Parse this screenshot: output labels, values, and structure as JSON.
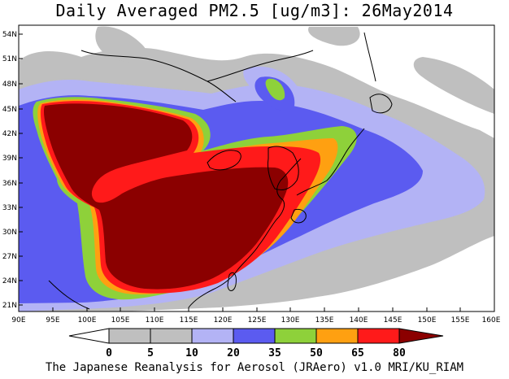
{
  "title": "Daily Averaged PM2.5 [ug/m3]: 26May2014",
  "footer": "The Japanese Reanalysis for Aerosol (JRAero) v1.0 MRI/KU_RIAM",
  "map": {
    "lon_range": [
      90,
      160
    ],
    "lat_range": [
      20,
      55
    ],
    "lon_ticks": [
      "90E",
      "95E",
      "100E",
      "105E",
      "110E",
      "115E",
      "120E",
      "125E",
      "130E",
      "135E",
      "140E",
      "145E",
      "150E",
      "155E",
      "160E"
    ],
    "lat_ticks": [
      "21N",
      "24N",
      "27N",
      "30N",
      "33N",
      "36N",
      "39N",
      "42N",
      "45N",
      "48N",
      "51N",
      "54N"
    ]
  },
  "legend": {
    "labels": [
      "0",
      "5",
      "10",
      "20",
      "35",
      "50",
      "65",
      "80"
    ],
    "colors": [
      "#ffffff",
      "#bfbfbf",
      "#b3b3f5",
      "#5b5bf0",
      "#8ed13a",
      "#ffa011",
      "#ff1a1a",
      "#8b0000"
    ]
  }
}
